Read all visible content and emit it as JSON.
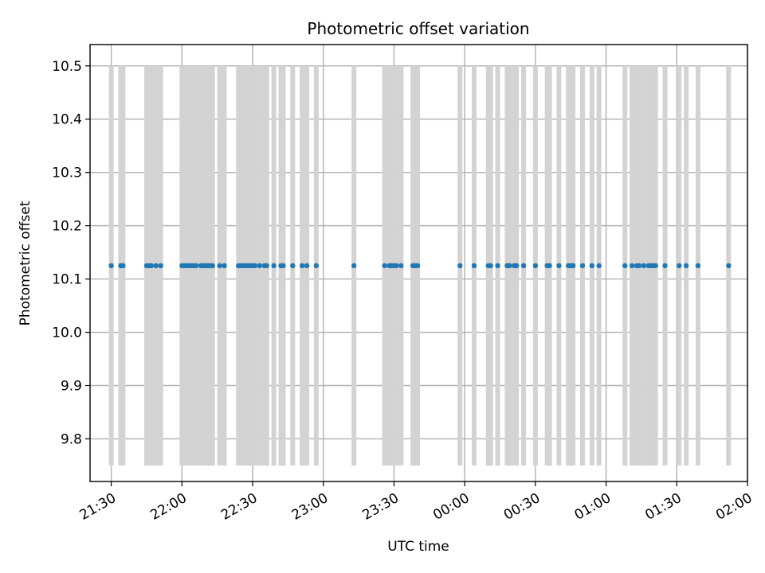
{
  "chart_data": {
    "type": "scatter",
    "title": "Photometric offset variation",
    "xlabel": "UTC time",
    "ylabel": "Photometric offset",
    "xlim": [
      "21:21",
      "02:00"
    ],
    "ylim": [
      9.72,
      10.54
    ],
    "grid": true,
    "x_ticks": [
      "21:30",
      "22:00",
      "22:30",
      "23:00",
      "23:30",
      "00:00",
      "00:30",
      "01:00",
      "01:30",
      "02:00"
    ],
    "y_ticks": [
      "9.8",
      "9.9",
      "10.0",
      "10.1",
      "10.2",
      "10.3",
      "10.4",
      "10.5"
    ],
    "y_value": 10.125,
    "error_range": [
      9.75,
      10.5
    ],
    "colors": {
      "points": "#1f77b4",
      "error_bars": "#d3d3d3",
      "grid": "#b0b0b0"
    },
    "x": [
      "21:30",
      "21:34",
      "21:35",
      "21:45",
      "21:46",
      "21:47",
      "21:49",
      "21:51",
      "22:00",
      "22:01",
      "22:02",
      "22:03",
      "22:04",
      "22:05",
      "22:06",
      "22:08",
      "22:09",
      "22:10",
      "22:11",
      "22:12",
      "22:13",
      "22:16",
      "22:18",
      "22:24",
      "22:25",
      "22:26",
      "22:27",
      "22:28",
      "22:29",
      "22:30",
      "22:31",
      "22:33",
      "22:35",
      "22:36",
      "22:39",
      "22:42",
      "22:43",
      "22:47",
      "22:51",
      "22:53",
      "22:57",
      "23:13",
      "23:26",
      "23:28",
      "23:29",
      "23:30",
      "23:31",
      "23:33",
      "23:38",
      "23:39",
      "23:40",
      "23:58",
      "00:04",
      "00:10",
      "00:11",
      "00:14",
      "00:18",
      "00:19",
      "00:21",
      "00:22",
      "00:25",
      "00:30",
      "00:35",
      "00:36",
      "00:40",
      "00:44",
      "00:45",
      "00:46",
      "00:50",
      "00:54",
      "00:57",
      "01:08",
      "01:11",
      "01:13",
      "01:14",
      "01:16",
      "01:18",
      "01:19",
      "01:20",
      "01:21",
      "01:25",
      "01:31",
      "01:34",
      "01:39",
      "01:52"
    ],
    "y": [
      10.125,
      10.125,
      10.125,
      10.125,
      10.125,
      10.125,
      10.125,
      10.125,
      10.125,
      10.125,
      10.125,
      10.125,
      10.125,
      10.125,
      10.125,
      10.125,
      10.125,
      10.125,
      10.125,
      10.125,
      10.125,
      10.125,
      10.125,
      10.125,
      10.125,
      10.125,
      10.125,
      10.125,
      10.125,
      10.125,
      10.125,
      10.125,
      10.125,
      10.125,
      10.125,
      10.125,
      10.125,
      10.125,
      10.125,
      10.125,
      10.125,
      10.125,
      10.125,
      10.125,
      10.125,
      10.125,
      10.125,
      10.125,
      10.125,
      10.125,
      10.125,
      10.125,
      10.125,
      10.125,
      10.125,
      10.125,
      10.125,
      10.125,
      10.125,
      10.125,
      10.125,
      10.125,
      10.125,
      10.125,
      10.125,
      10.125,
      10.125,
      10.125,
      10.125,
      10.125,
      10.125,
      10.125,
      10.125,
      10.125,
      10.125,
      10.125,
      10.125,
      10.125,
      10.125,
      10.125,
      10.125,
      10.125,
      10.125,
      10.125,
      10.125
    ]
  }
}
